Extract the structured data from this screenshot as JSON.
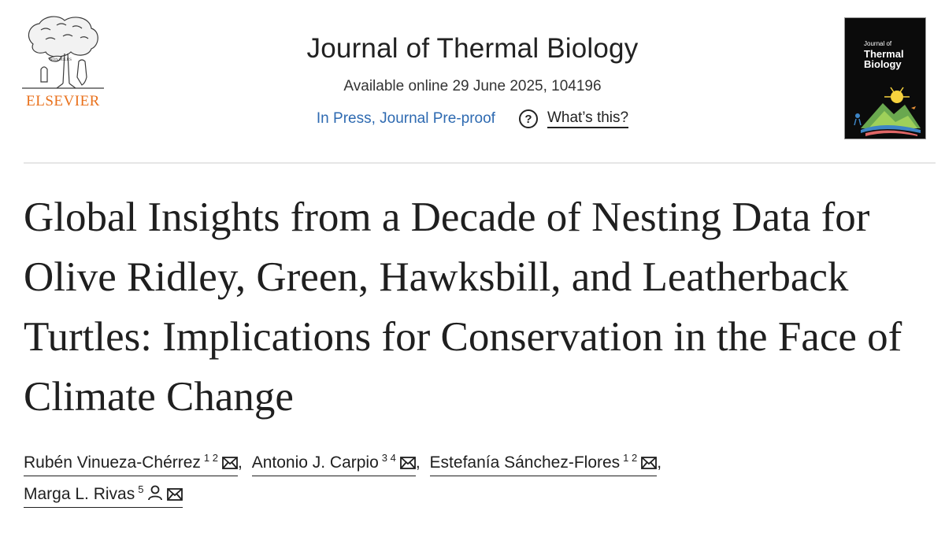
{
  "publisher": {
    "name": "ELSEVIER",
    "logo_icon": "elsevier-tree-logo",
    "brand_color": "#e9711c"
  },
  "journal": {
    "title": "Journal of Thermal Biology",
    "availability": "Available online 29 June 2025, 104196",
    "status_link": "In Press, Journal Pre-proof",
    "help_label": "What’s this?",
    "cover_title_small": "Journal of",
    "cover_title_line1": "Thermal",
    "cover_title_line2": "Biology",
    "link_color": "#2e6ab1"
  },
  "article": {
    "title": "Global Insights from a Decade of Nesting Data for Olive Ridley, Green, Hawksbill, and Leatherback Turtles: Implications for Conservation in the Face of Climate Change"
  },
  "authors": [
    {
      "name": "Rubén Vinueza-Chérrez",
      "affiliations": "1 2",
      "icons": [
        "email-icon"
      ]
    },
    {
      "name": "Antonio J. Carpio",
      "affiliations": "3 4",
      "icons": [
        "email-icon"
      ]
    },
    {
      "name": "Estefanía Sánchez-Flores",
      "affiliations": "1 2",
      "icons": [
        "email-icon"
      ]
    },
    {
      "name": "Marga L. Rivas",
      "affiliations": "5",
      "icons": [
        "person-icon",
        "email-icon"
      ]
    }
  ],
  "separators": {
    "comma": ","
  }
}
